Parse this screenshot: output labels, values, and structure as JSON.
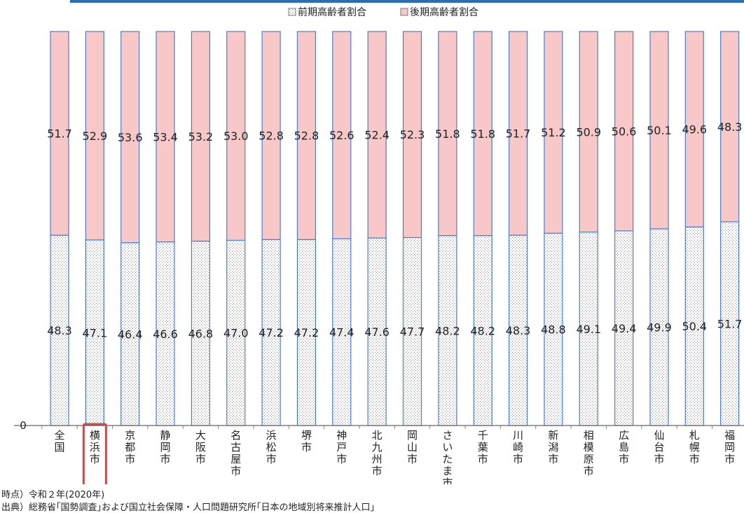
{
  "chart_data": {
    "type": "bar",
    "stacked": true,
    "percent_stacked": true,
    "ylim": [
      0,
      100
    ],
    "zero_label": "0",
    "legend_position": "top",
    "highlight_category": "横浜市",
    "categories": [
      "全国",
      "横浜市",
      "京都市",
      "静岡市",
      "大阪市",
      "名古屋市",
      "浜松市",
      "堺市",
      "神戸市",
      "北九州市",
      "岡山市",
      "さいたま市",
      "千葉市",
      "川崎市",
      "新潟市",
      "相模原市",
      "広島市",
      "仙台市",
      "札幌市",
      "福岡市"
    ],
    "series": [
      {
        "name": "前期高齢者割合",
        "values": [
          48.3,
          47.1,
          46.4,
          46.6,
          46.8,
          47.0,
          47.2,
          47.2,
          47.4,
          47.6,
          47.7,
          48.2,
          48.2,
          48.3,
          48.8,
          49.1,
          49.4,
          49.9,
          50.4,
          51.7
        ],
        "labels": [
          "48.3",
          "47.1",
          "46.4",
          "46.6",
          "46.8",
          "47.0",
          "47.2",
          "47.2",
          "47.4",
          "47.6",
          "47.7",
          "48.2",
          "48.2",
          "48.3",
          "48.8",
          "49.1",
          "49.4",
          "49.9",
          "50.4",
          "51.7"
        ],
        "color": "#ffffff",
        "dot_color": "#5b8fd6",
        "stroke": "#4a7fd0"
      },
      {
        "name": "後期高齢者割合",
        "values": [
          51.7,
          52.9,
          53.6,
          53.4,
          53.2,
          53.0,
          52.8,
          52.8,
          52.6,
          52.4,
          52.3,
          51.8,
          51.8,
          51.7,
          51.2,
          50.9,
          50.6,
          50.1,
          49.6,
          48.3
        ],
        "labels": [
          "51.7",
          "52.9",
          "53.6",
          "53.4",
          "53.2",
          "53.0",
          "52.8",
          "52.8",
          "52.6",
          "52.4",
          "52.3",
          "51.8",
          "51.8",
          "51.7",
          "51.2",
          "50.9",
          "50.6",
          "50.1",
          "49.6",
          "48.3"
        ],
        "color": "#f8c8c8",
        "stroke": "#4a7fd0"
      }
    ],
    "highlight_color": "#c0504d"
  },
  "notes": {
    "time": "時点）令和２年(2020年)",
    "source": "出典）総務省｢国勢調査｣および国立社会保障・人口問題研究所｢日本の地域別将来推計人口｣"
  }
}
